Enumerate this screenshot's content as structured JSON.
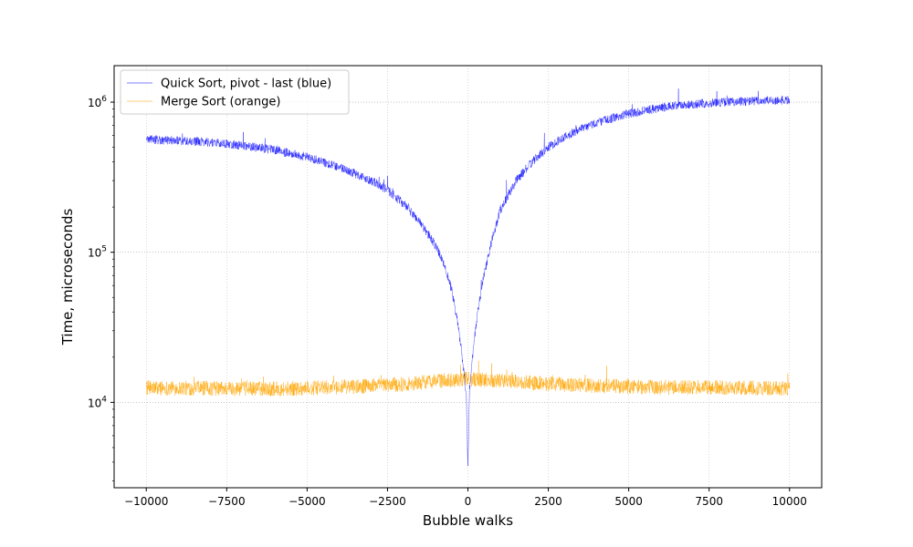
{
  "chart_data": {
    "type": "line",
    "xlabel": "Bubble walks",
    "ylabel": "Time, microseconds",
    "x_scale": "linear",
    "y_scale": "log",
    "xlim": [
      -11000,
      11000
    ],
    "ylim": [
      2700,
      1750000
    ],
    "x_ticks": [
      -10000,
      -7500,
      -5000,
      -2500,
      0,
      2500,
      5000,
      7500,
      10000
    ],
    "x_tick_labels": [
      "−10000",
      "−7500",
      "−5000",
      "−2500",
      "0",
      "2500",
      "5000",
      "7500",
      "10000"
    ],
    "y_ticks": [
      10000,
      100000,
      1000000
    ],
    "y_tick_labels": [
      {
        "base": "10",
        "exp": "4"
      },
      {
        "base": "10",
        "exp": "5"
      },
      {
        "base": "10",
        "exp": "6"
      }
    ],
    "grid": true,
    "legend_position": "upper-left",
    "legend": [
      "Quick Sort, pivot - last (blue)",
      "Merge Sort (orange)"
    ],
    "series": [
      {
        "name": "Quick Sort, pivot - last (blue)",
        "color": "#0000ff",
        "x": [
          -10000,
          -9000,
          -8000,
          -7000,
          -6000,
          -5000,
          -4000,
          -3000,
          -2500,
          -2000,
          -1500,
          -1000,
          -700,
          -500,
          -300,
          -200,
          -100,
          -50,
          0,
          50,
          100,
          200,
          300,
          500,
          700,
          1000,
          1500,
          2000,
          2500,
          3000,
          4000,
          5000,
          6000,
          7000,
          8000,
          9000,
          10000
        ],
        "y": [
          565000,
          555000,
          540000,
          515000,
          480000,
          430000,
          370000,
          300000,
          260000,
          210000,
          160000,
          110000,
          80000,
          55000,
          32000,
          22000,
          14000,
          11000,
          3800,
          12000,
          16000,
          26000,
          40000,
          70000,
          110000,
          190000,
          300000,
          400000,
          500000,
          590000,
          730000,
          840000,
          920000,
          970000,
          1000000,
          1020000,
          1030000
        ]
      },
      {
        "name": "Merge Sort (orange)",
        "color": "#ffa500",
        "x": [
          -10000,
          -8000,
          -6000,
          -4000,
          -2000,
          -1000,
          0,
          1000,
          2000,
          4000,
          6000,
          8000,
          10000
        ],
        "y": [
          12500,
          12400,
          12300,
          12600,
          13200,
          13900,
          14300,
          14000,
          13500,
          12900,
          12600,
          12500,
          12400
        ]
      }
    ]
  }
}
